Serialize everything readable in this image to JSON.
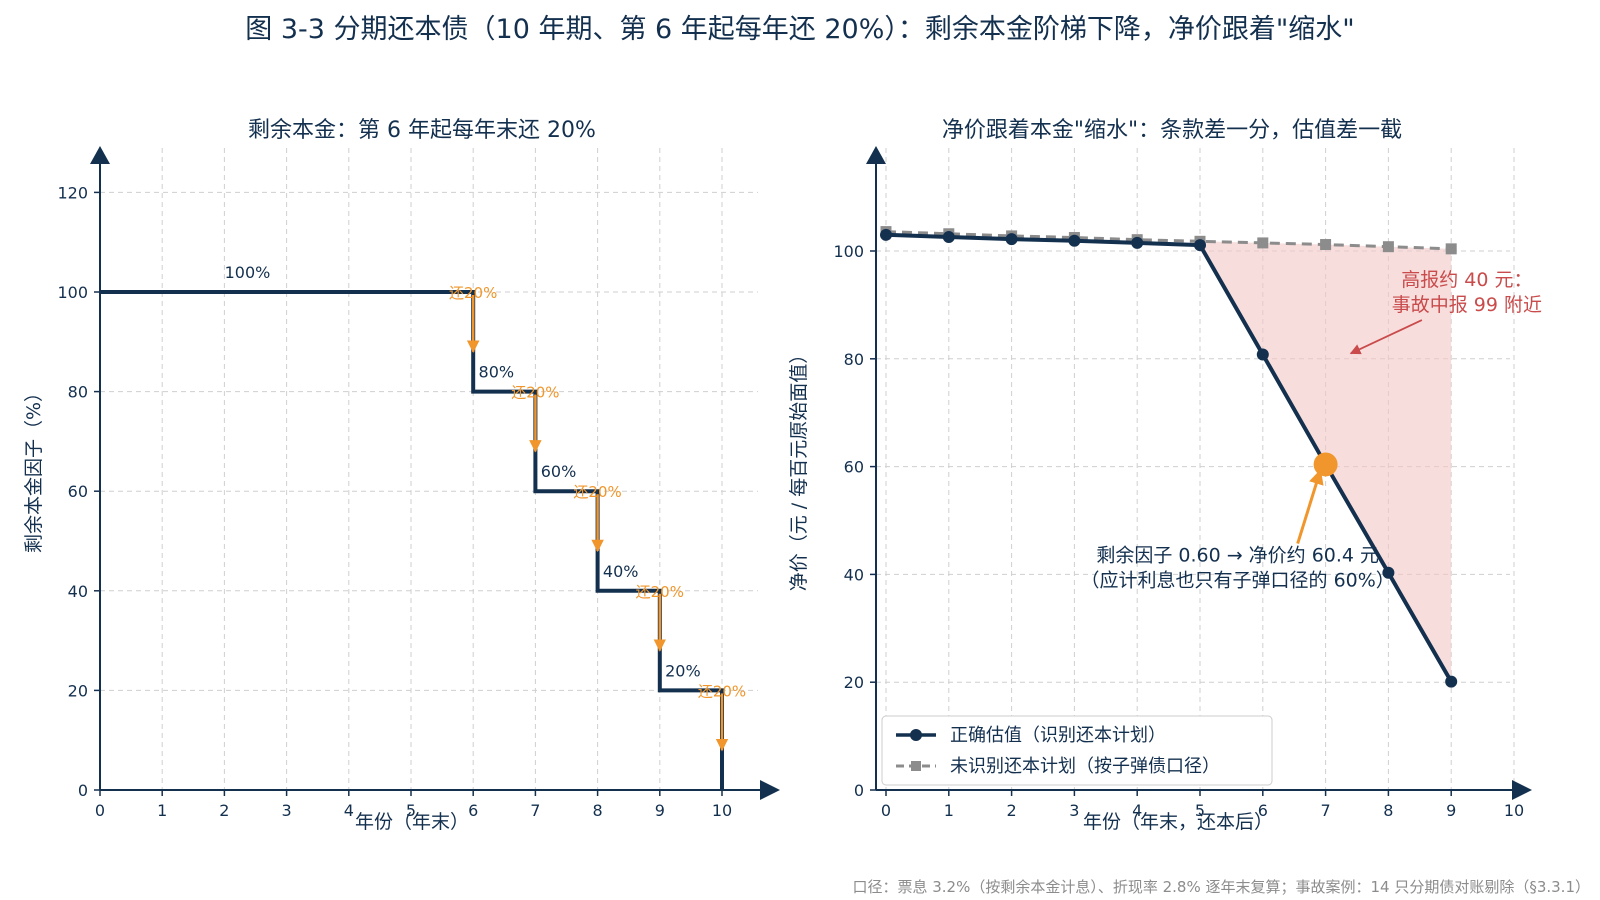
{
  "page": {
    "title": "图 3-3 分期还本债（10 年期、第 6 年起每年还 20%）：剩余本金阶梯下降，净价跟着\"缩水\"",
    "footer": "口径：票息 3.2%（按剩余本金计息）、折现率 2.8% 逐年末复算；事故案例：14 只分期债对账剔除（§3.3.1）"
  },
  "chart_data": [
    {
      "type": "line",
      "subtype": "step",
      "title": "剩余本金：第 6 年起每年末还 20%",
      "xlabel": "年份（年末）",
      "ylabel": "剩余本金因子（%）",
      "xlim": [
        0,
        10
      ],
      "ylim": [
        0,
        120
      ],
      "x_ticks": [
        0,
        1,
        2,
        3,
        4,
        5,
        6,
        7,
        8,
        9,
        10
      ],
      "y_ticks": [
        0,
        20,
        40,
        60,
        80,
        100,
        120
      ],
      "grid": true,
      "series": [
        {
          "x": [
            0,
            6,
            6,
            7,
            7,
            8,
            8,
            9,
            9,
            10,
            10
          ],
          "values": [
            100,
            100,
            80,
            80,
            60,
            60,
            40,
            40,
            20,
            20,
            0
          ],
          "color": "#14304f"
        }
      ],
      "level_labels": [
        {
          "x": 2.5,
          "y": 100,
          "text": "100%"
        },
        {
          "x": 6.5,
          "y": 80,
          "text": "80%"
        },
        {
          "x": 7.5,
          "y": 60,
          "text": "60%"
        },
        {
          "x": 8.5,
          "y": 40,
          "text": "40%"
        },
        {
          "x": 9.5,
          "y": 20,
          "text": "20%"
        }
      ],
      "repayments": [
        {
          "x": 6,
          "from": 100,
          "to": 80,
          "label": "还20%"
        },
        {
          "x": 7,
          "from": 80,
          "to": 60,
          "label": "还20%"
        },
        {
          "x": 8,
          "from": 60,
          "to": 40,
          "label": "还20%"
        },
        {
          "x": 9,
          "from": 40,
          "to": 20,
          "label": "还20%"
        },
        {
          "x": 10,
          "from": 20,
          "to": 0,
          "label": "还20%"
        }
      ],
      "repay_color": "#f0962c"
    },
    {
      "type": "line",
      "title": "净价跟着本金\"缩水\"：条款差一分，估值差一截",
      "xlabel": "年份（年末，还本后）",
      "ylabel": "净价（元 / 每百元原始面值）",
      "xlim": [
        0,
        10
      ],
      "ylim": [
        0,
        115
      ],
      "x_ticks": [
        0,
        1,
        2,
        3,
        4,
        5,
        6,
        7,
        8,
        9,
        10
      ],
      "y_ticks": [
        0,
        20,
        40,
        60,
        80,
        100
      ],
      "grid": true,
      "legend": "bottom-left",
      "x": [
        0,
        1,
        2,
        3,
        4,
        5,
        6,
        7,
        8,
        9
      ],
      "series": [
        {
          "name": "正确估值（识别还本计划）",
          "values": [
            103.0,
            102.6,
            102.2,
            101.9,
            101.5,
            101.1,
            80.8,
            60.4,
            40.3,
            20.1
          ],
          "color": "#14304f",
          "marker": "circle",
          "style": "solid"
        },
        {
          "name": "未识别还本计划（按子弹债口径）",
          "values": [
            103.6,
            103.2,
            102.8,
            102.5,
            102.1,
            101.8,
            101.5,
            101.2,
            100.8,
            100.4
          ],
          "color": "#8c8c8c",
          "marker": "square",
          "style": "dashed"
        }
      ],
      "shade_color": "#f3c6c6",
      "highlight": {
        "x": 7,
        "y": 60.4,
        "color": "#f0962c"
      },
      "annotations": [
        {
          "lines": [
            "高报约 40 元：",
            "事故中报 99 附近"
          ],
          "color": "#c94b4b",
          "text_x": 9.25,
          "text_y": 92,
          "arrow_to_x": 7.4,
          "arrow_to_y": 81
        },
        {
          "lines": [
            "剩余因子 0.60 → 净价约 60.4 元",
            "（应计利息也只有子弹口径的 60%）"
          ],
          "color": "#14304f",
          "text_x": 5.6,
          "text_y": 43.5,
          "arrow_to_x": 6.98,
          "arrow_to_y": 60
        }
      ]
    }
  ]
}
